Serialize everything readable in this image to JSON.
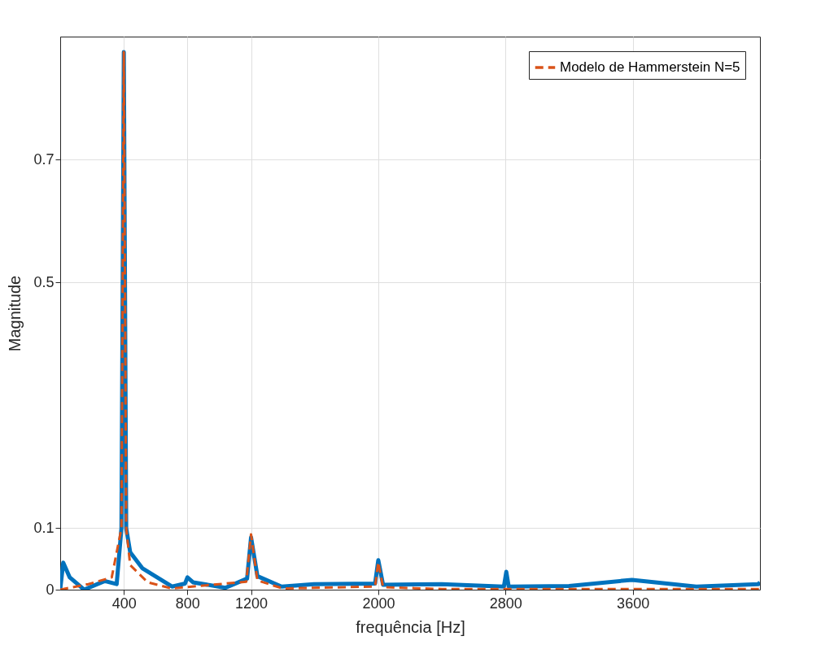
{
  "chart_data": {
    "type": "line",
    "xlabel": "frequência [Hz]",
    "ylabel": "Magnitude",
    "xlim": [
      0,
      4400
    ],
    "ylim": [
      0,
      0.9
    ],
    "xticks": [
      400,
      800,
      1200,
      2000,
      2800,
      3600
    ],
    "yticks": [
      0,
      0.1,
      0.5,
      0.7
    ],
    "grid": true,
    "legend": "top right",
    "marker": "none",
    "series": [
      {
        "color": "#0072bd",
        "line_style": "solid",
        "x": [
          0,
          19,
          60,
          150,
          280,
          355,
          385,
          400,
          415,
          440,
          516,
          703,
          785,
          800,
          835,
          1038,
          1175,
          1200,
          1240,
          1392,
          1595,
          1980,
          2000,
          2030,
          2400,
          2790,
          2805,
          2820,
          3200,
          3595,
          4000,
          4390,
          4400
        ],
        "values": [
          0,
          0.044,
          0.02,
          0,
          0.014,
          0.009,
          0.1,
          0.875,
          0.1,
          0.061,
          0.035,
          0.005,
          0.01,
          0.02,
          0.012,
          0.003,
          0.018,
          0.085,
          0.022,
          0.005,
          0.009,
          0.01,
          0.048,
          0.008,
          0.009,
          0.005,
          0.029,
          0.005,
          0.006,
          0.016,
          0.005,
          0.009,
          0.012
        ]
      },
      {
        "name": "Modelo de Hammerstein N=5",
        "color": "#d95319",
        "line_style": "dashed",
        "x": [
          0,
          177,
          324,
          385,
          400,
          415,
          440,
          550,
          700,
          1170,
          1200,
          1240,
          1400,
          1980,
          2000,
          2030,
          2400,
          4400
        ],
        "values": [
          0,
          0.009,
          0.02,
          0.1,
          0.875,
          0.1,
          0.04,
          0.012,
          0.002,
          0.013,
          0.09,
          0.015,
          0.002,
          0.005,
          0.045,
          0.004,
          0.001,
          0.001
        ]
      }
    ]
  }
}
